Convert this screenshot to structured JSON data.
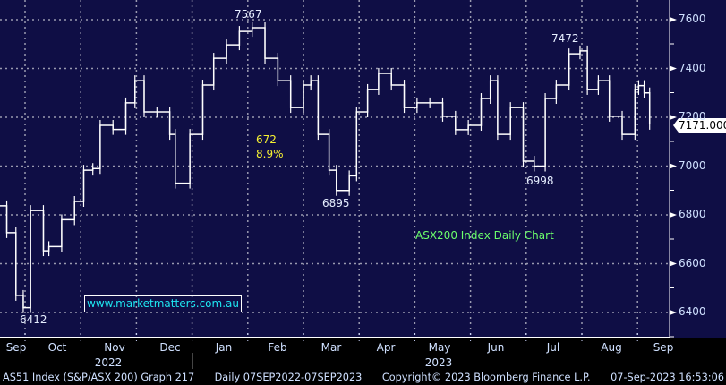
{
  "chart_data": {
    "type": "line",
    "title": "",
    "xlabel": "",
    "ylabel": "",
    "ylim": [
      6300,
      7680
    ],
    "yticks": [
      "7600",
      "7400",
      "7200",
      "7000",
      "6800",
      "6600",
      "6400"
    ],
    "grid": true,
    "axis_position": "right",
    "xticks": [
      "Sep",
      "Oct",
      "Nov",
      "Dec",
      "Jan",
      "Feb",
      "Mar",
      "Apr",
      "May",
      "Jun",
      "Jul",
      "Aug",
      "Sep"
    ],
    "years": [
      "2022",
      "2023"
    ],
    "series": [
      {
        "color": "#ffffff",
        "points": [
          [
            "2022-09-16",
            6837
          ],
          [
            "2022-09-21",
            6727
          ],
          [
            "2022-09-26",
            6470
          ],
          [
            "2022-09-30",
            6420
          ],
          [
            "2022-10-04",
            6818
          ],
          [
            "2022-10-11",
            6653
          ],
          [
            "2022-10-14",
            6670
          ],
          [
            "2022-10-21",
            6780
          ],
          [
            "2022-10-28",
            6855
          ],
          [
            "2022-11-02",
            6983
          ],
          [
            "2022-11-07",
            6990
          ],
          [
            "2022-11-11",
            7167
          ],
          [
            "2022-11-18",
            7150
          ],
          [
            "2022-11-25",
            7259
          ],
          [
            "2022-11-30",
            7350
          ],
          [
            "2022-12-05",
            7222
          ],
          [
            "2022-12-12",
            7222
          ],
          [
            "2022-12-19",
            7130
          ],
          [
            "2022-12-22",
            6930
          ],
          [
            "2022-12-30",
            7130
          ],
          [
            "2023-01-06",
            7332
          ],
          [
            "2023-01-12",
            7442
          ],
          [
            "2023-01-19",
            7497
          ],
          [
            "2023-01-26",
            7552
          ],
          [
            "2023-02-02",
            7567
          ],
          [
            "2023-02-09",
            7442
          ],
          [
            "2023-02-16",
            7350
          ],
          [
            "2023-02-23",
            7240
          ],
          [
            "2023-03-02",
            7332
          ],
          [
            "2023-03-06",
            7350
          ],
          [
            "2023-03-10",
            7130
          ],
          [
            "2023-03-16",
            6983
          ],
          [
            "2023-03-20",
            6900
          ],
          [
            "2023-03-27",
            6960
          ],
          [
            "2023-03-31",
            7222
          ],
          [
            "2023-04-06",
            7314
          ],
          [
            "2023-04-12",
            7380
          ],
          [
            "2023-04-19",
            7332
          ],
          [
            "2023-04-26",
            7240
          ],
          [
            "2023-05-03",
            7259
          ],
          [
            "2023-05-10",
            7259
          ],
          [
            "2023-05-17",
            7204
          ],
          [
            "2023-05-24",
            7149
          ],
          [
            "2023-05-31",
            7167
          ],
          [
            "2023-06-07",
            7277
          ],
          [
            "2023-06-12",
            7350
          ],
          [
            "2023-06-16",
            7130
          ],
          [
            "2023-06-23",
            7240
          ],
          [
            "2023-06-30",
            7020
          ],
          [
            "2023-07-06",
            7000
          ],
          [
            "2023-07-12",
            7277
          ],
          [
            "2023-07-18",
            7332
          ],
          [
            "2023-07-25",
            7460
          ],
          [
            "2023-07-31",
            7472
          ],
          [
            "2023-08-04",
            7314
          ],
          [
            "2023-08-10",
            7350
          ],
          [
            "2023-08-16",
            7204
          ],
          [
            "2023-08-23",
            7130
          ],
          [
            "2023-08-30",
            7314
          ],
          [
            "2023-09-01",
            7330
          ],
          [
            "2023-09-04",
            7300
          ],
          [
            "2023-09-07",
            7171
          ]
        ]
      }
    ],
    "last_value": "7171.000",
    "annotations": {
      "high_1": "7567",
      "high_2": "7472",
      "low_1": "6412",
      "low_2": "6895",
      "low_3": "6998",
      "drop_points": "672",
      "drop_pct": "8.9%",
      "caption": "ASX200 Index Daily Chart",
      "watermark": "www.marketmatters.com.au"
    }
  },
  "colors": {
    "background": "#0f0e45",
    "line": "#ffffff",
    "caption": "#6cff6c",
    "drop": "#f5f032",
    "watermark": "#1ee6f0"
  },
  "footer": {
    "security": "AS51 Index (S&P/ASX 200) Graph 217",
    "range": "Daily 07SEP2022-07SEP2023",
    "copyright": "Copyright© 2023 Bloomberg Finance L.P.",
    "timestamp": "07-Sep-2023 16:53:06"
  }
}
